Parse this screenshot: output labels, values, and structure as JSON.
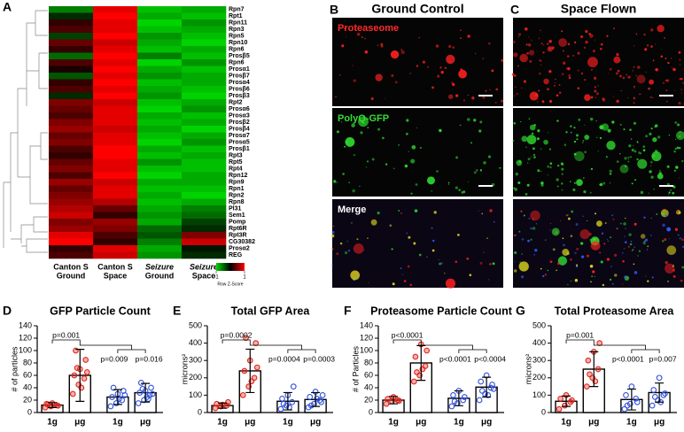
{
  "figure": {
    "letters": [
      "A",
      "B",
      "C",
      "D",
      "E",
      "F",
      "G"
    ],
    "images": {
      "columns": [
        "Ground Control",
        "Space Flown"
      ],
      "rows": [
        "Proteaseome",
        "PolyQ-GFP",
        "Merge"
      ],
      "colors": [
        "#ff2a2a",
        "#33dd33",
        "#ffffff"
      ]
    }
  },
  "chart_data": [
    {
      "type": "heatmap",
      "rows": [
        "Rpn7",
        "Rpt1",
        "Rpn11",
        "Rpn3",
        "Rpn5",
        "Rpn10",
        "Rpn6",
        "Prosβ5",
        "Rpn6",
        "Prosα1",
        "Prosβ7",
        "Prosα4",
        "Prosβ6",
        "Prosβ3",
        "Rpt2",
        "Prosα6",
        "Prosα3",
        "Prosβ2",
        "Prosβ4",
        "Prosα7",
        "Prosα5",
        "Prosβ1",
        "Rpt3",
        "Rpt5",
        "Rpt4",
        "Rpn12",
        "Rpn9",
        "Rpn1",
        "Rpn2",
        "Rpn8",
        "PI31",
        "Sem1",
        "Pomp",
        "Rpt6R",
        "Rpt3R",
        "CG30382",
        "Prosα2",
        "REG"
      ],
      "columns": [
        [
          "Canton S",
          "Ground"
        ],
        [
          "Canton S",
          "Space"
        ],
        [
          "Seizure",
          "Ground"
        ],
        [
          "Seizure",
          "Space"
        ]
      ],
      "italic_columns": [
        2,
        3
      ],
      "values": [
        [
          -0.6,
          0.9,
          -0.9,
          -0.8
        ],
        [
          -0.2,
          1,
          -0.8,
          -0.9
        ],
        [
          0.2,
          0.9,
          -1,
          -0.7
        ],
        [
          0.3,
          0.9,
          -0.9,
          -0.8
        ],
        [
          -0.3,
          1,
          -0.7,
          -0.9
        ],
        [
          0.4,
          0.8,
          -0.8,
          -1
        ],
        [
          0.2,
          0.9,
          -0.9,
          -0.8
        ],
        [
          -0.5,
          1,
          -0.6,
          -0.9
        ],
        [
          0.3,
          0.9,
          -1,
          -0.7
        ],
        [
          0.1,
          1,
          -0.8,
          -0.9
        ],
        [
          -0.4,
          0.9,
          -0.7,
          -0.8
        ],
        [
          0.2,
          1,
          -0.9,
          -0.8
        ],
        [
          0.3,
          0.9,
          -0.8,
          -0.9
        ],
        [
          -0.2,
          1,
          -0.7,
          -1
        ],
        [
          0.5,
          0.8,
          -0.9,
          -0.8
        ],
        [
          0.4,
          0.9,
          -1,
          -0.7
        ],
        [
          0.3,
          0.9,
          -0.8,
          -0.9
        ],
        [
          0.5,
          0.9,
          -0.9,
          -0.8
        ],
        [
          0.6,
          0.8,
          -0.8,
          -1
        ],
        [
          0.4,
          0.9,
          -0.9,
          -0.8
        ],
        [
          0.5,
          0.9,
          -1,
          -0.7
        ],
        [
          0.3,
          1,
          -0.8,
          -0.9
        ],
        [
          0.2,
          1,
          -0.9,
          -0.8
        ],
        [
          0.4,
          0.9,
          -0.7,
          -0.9
        ],
        [
          0.5,
          0.9,
          -0.9,
          -0.9
        ],
        [
          0.3,
          1,
          -1,
          -0.8
        ],
        [
          0.6,
          0.8,
          -0.8,
          -0.8
        ],
        [
          0.4,
          0.9,
          -0.9,
          -0.9
        ],
        [
          0.5,
          0.9,
          -0.8,
          -1
        ],
        [
          0.6,
          0.7,
          -0.9,
          -0.8
        ],
        [
          0.7,
          0.4,
          -0.8,
          -0.6
        ],
        [
          0.8,
          0.2,
          -0.7,
          -0.5
        ],
        [
          0.5,
          0.6,
          -0.8,
          -0.3
        ],
        [
          0.6,
          0.5,
          -0.5,
          -0.2
        ],
        [
          0.9,
          0.3,
          -0.4,
          0.5
        ],
        [
          1,
          0.2,
          -0.6,
          0.8
        ],
        [
          0.2,
          0.9,
          -0.8,
          -0.1
        ],
        [
          0.3,
          0.8,
          -0.7,
          -0.2
        ]
      ],
      "zlim": [
        -1,
        1
      ],
      "colorbar_ticks": [
        -1,
        1
      ],
      "colorbar_label": "Row Z-Score",
      "colors": {
        "low": "#00d400",
        "mid": "#000000",
        "high": "#ff0000"
      }
    },
    {
      "type": "bar",
      "title": "GFP Particle Count",
      "ylabel": "# of particles",
      "categories": [
        "1g",
        "μg",
        "1g",
        "μg"
      ],
      "values": [
        12,
        60,
        25,
        32
      ],
      "errors": [
        4,
        42,
        12,
        15
      ],
      "colors": [
        "#e0261c",
        "#e0261c",
        "#2e4fd8",
        "#2e4fd8"
      ],
      "points": [
        [
          8,
          10,
          12,
          14,
          15,
          11,
          13
        ],
        [
          30,
          45,
          55,
          60,
          70,
          85,
          100,
          40,
          65,
          72
        ],
        [
          10,
          15,
          20,
          25,
          30,
          35,
          40,
          22,
          28
        ],
        [
          15,
          20,
          28,
          32,
          35,
          40,
          48,
          25,
          30,
          38,
          22
        ]
      ],
      "ylim": [
        0,
        140
      ],
      "yticks": [
        0,
        20,
        40,
        60,
        80,
        100,
        120,
        140
      ],
      "annotations": [
        "p=0.001",
        "p=0.009",
        "p=0.016"
      ]
    },
    {
      "type": "bar",
      "title": "Total GFP Area",
      "ylabel": "microns²",
      "categories": [
        "1g",
        "μg",
        "1g",
        "μg"
      ],
      "values": [
        40,
        240,
        65,
        75
      ],
      "errors": [
        15,
        125,
        50,
        40
      ],
      "colors": [
        "#e0261c",
        "#e0261c",
        "#2e4fd8",
        "#2e4fd8"
      ],
      "points": [
        [
          25,
          35,
          40,
          50,
          45,
          60
        ],
        [
          100,
          150,
          200,
          240,
          300,
          400,
          430,
          180,
          260
        ],
        [
          20,
          40,
          60,
          80,
          100,
          150,
          50,
          30
        ],
        [
          30,
          50,
          70,
          90,
          120,
          60,
          40,
          80,
          100
        ]
      ],
      "ylim": [
        0,
        500
      ],
      "yticks": [
        0,
        100,
        200,
        300,
        400,
        500
      ],
      "annotations": [
        "p=0.0002",
        "p=0.0004",
        "p=0.0003"
      ]
    },
    {
      "type": "bar",
      "title": "Proteasome Particle Count",
      "ylabel": "# of Particles",
      "categories": [
        "1g",
        "μg",
        "1g",
        "μg"
      ],
      "values": [
        20,
        80,
        23,
        41
      ],
      "errors": [
        6,
        28,
        12,
        16
      ],
      "colors": [
        "#e0261c",
        "#e0261c",
        "#2e4fd8",
        "#2e4fd8"
      ],
      "points": [
        [
          14,
          18,
          20,
          22,
          25,
          19
        ],
        [
          50,
          60,
          75,
          90,
          110,
          100,
          65,
          70
        ],
        [
          10,
          15,
          20,
          28,
          35,
          25,
          18
        ],
        [
          20,
          30,
          40,
          50,
          60,
          45,
          35,
          28,
          38
        ]
      ],
      "ylim": [
        0,
        140
      ],
      "yticks": [
        0,
        20,
        40,
        60,
        80,
        100,
        120,
        140
      ],
      "annotations": [
        "p<0.0001",
        "p<0.0001",
        "p<0.0004"
      ]
    },
    {
      "type": "bar",
      "title": "Total Proteasome Area",
      "ylabel": "microns²",
      "categories": [
        "1g",
        "μg",
        "1g",
        "μg"
      ],
      "values": [
        65,
        250,
        75,
        115
      ],
      "errors": [
        30,
        100,
        60,
        55
      ],
      "colors": [
        "#e0261c",
        "#e0261c",
        "#2e4fd8",
        "#2e4fd8"
      ],
      "points": [
        [
          20,
          40,
          60,
          80,
          100,
          70
        ],
        [
          150,
          200,
          250,
          300,
          350,
          400,
          220,
          180
        ],
        [
          20,
          50,
          80,
          100,
          150,
          60,
          40
        ],
        [
          40,
          70,
          100,
          130,
          200,
          110,
          90,
          60
        ]
      ],
      "ylim": [
        0,
        500
      ],
      "yticks": [
        0,
        100,
        200,
        300,
        400,
        500
      ],
      "annotations": [
        "p=0.001",
        "p<0.0001",
        "p=0.007"
      ]
    }
  ]
}
